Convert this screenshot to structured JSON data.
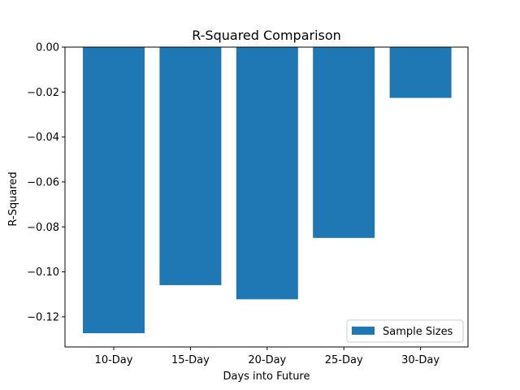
{
  "chart_data": {
    "type": "bar",
    "title": "R-Squared Comparison",
    "xlabel": "Days into Future",
    "ylabel": "R-Squared",
    "categories": [
      "10-Day",
      "15-Day",
      "20-Day",
      "25-Day",
      "30-Day"
    ],
    "series": [
      {
        "name": "Sample Sizes",
        "values": [
          -0.1273,
          -0.1059,
          -0.1122,
          -0.0849,
          -0.0226
        ],
        "color": "#1f77b4"
      }
    ],
    "ylim": [
      -0.1334,
      0.0
    ],
    "yticks": [
      0.0,
      -0.02,
      -0.04,
      -0.06,
      -0.08,
      -0.1,
      -0.12
    ],
    "ytick_labels": [
      "0.00",
      "−0.02",
      "−0.04",
      "−0.06",
      "−0.08",
      "−0.10",
      "−0.12"
    ],
    "grid": false,
    "legend_position": "lower-right"
  }
}
